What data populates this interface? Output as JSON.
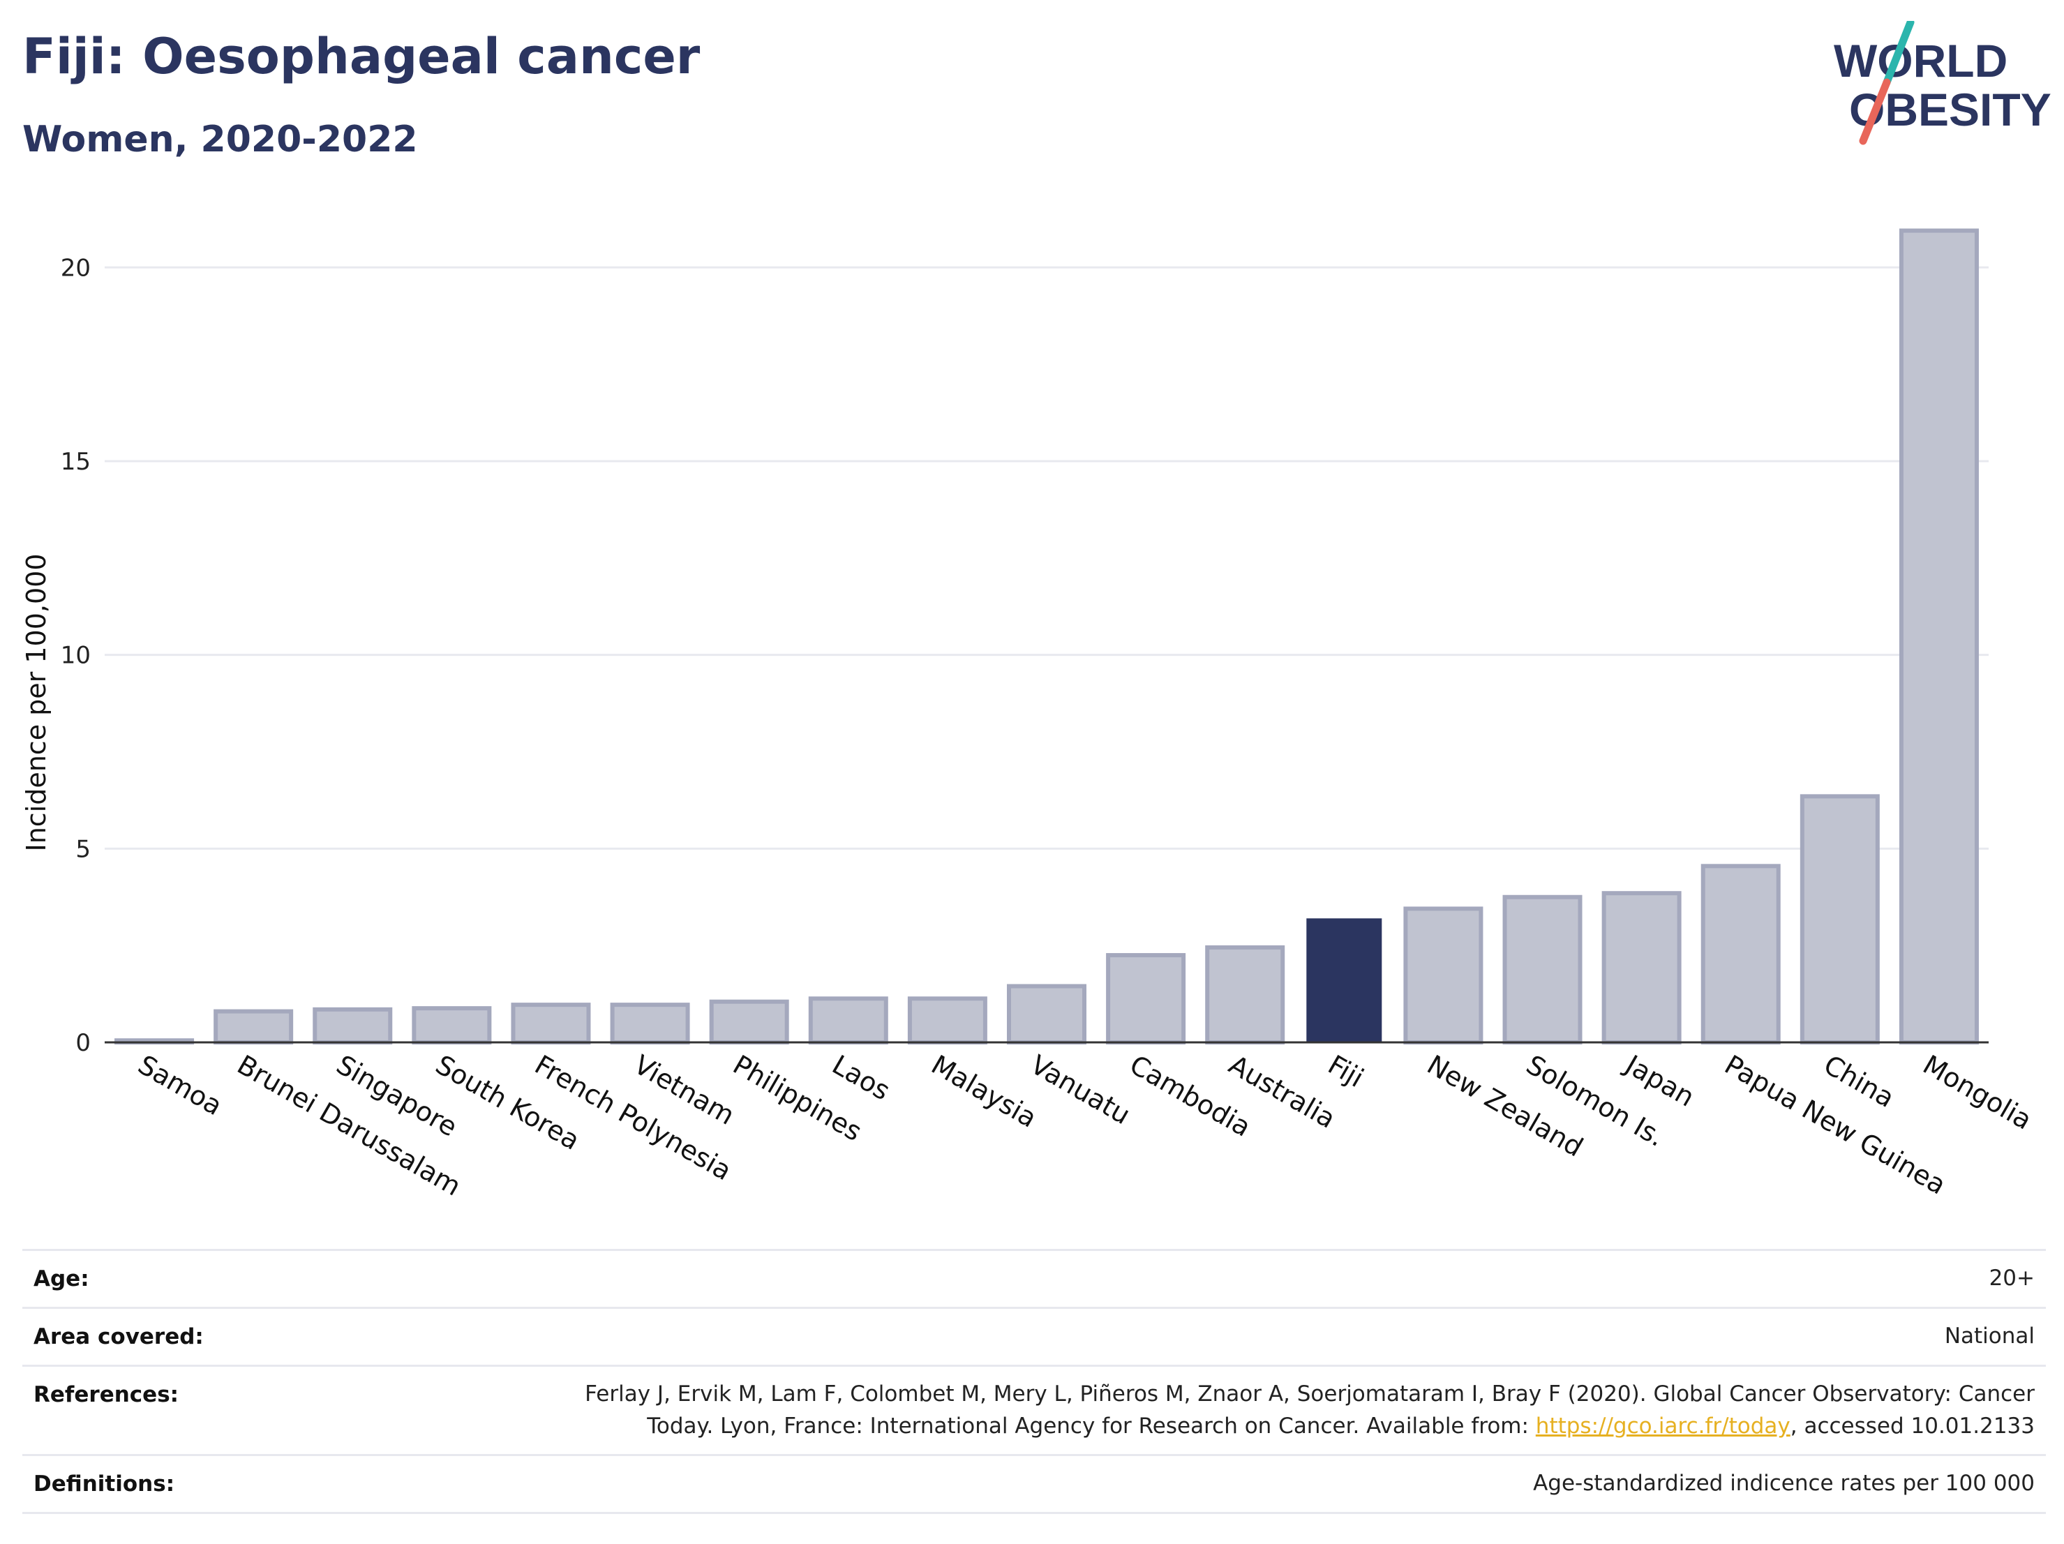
{
  "header": {
    "title": "Fiji: Oesophageal cancer",
    "subtitle": "Women, 2020-2022"
  },
  "logo": {
    "line1": "WORLD",
    "line2": "OBESITY",
    "text_color": "#2b3560",
    "slash_color_top": "#2bb5ad",
    "slash_color_bottom": "#e8665a"
  },
  "colors": {
    "highlight_bar": "#2b3560",
    "other_bar_fill": "#c0c3d0",
    "other_bar_stroke": "#a4a8bd",
    "gridline": "#e8e9ef",
    "axis": "#333333"
  },
  "chart_data": {
    "type": "bar",
    "categories": [
      "Samoa",
      "Brunei Darussalam",
      "Singapore",
      "South Korea",
      "French Polynesia",
      "Vietnam",
      "Philippines",
      "Laos",
      "Malaysia",
      "Vanuatu",
      "Cambodia",
      "Australia",
      "Fiji",
      "New Zealand",
      "Solomon Is.",
      "Japan",
      "Papua New Guinea",
      "China",
      "Mongolia"
    ],
    "values": [
      0.05,
      0.8,
      0.85,
      0.88,
      0.97,
      0.97,
      1.05,
      1.13,
      1.13,
      1.45,
      2.25,
      2.45,
      3.2,
      3.45,
      3.75,
      3.85,
      4.55,
      6.35,
      20.95
    ],
    "highlight": "Fiji",
    "ylabel": "Incidence per 100,000",
    "xlabel": "",
    "ylim": [
      0,
      21.5
    ],
    "yticks": [
      0,
      5,
      10,
      15,
      20
    ],
    "grid": true
  },
  "info": {
    "age_label": "Age:",
    "age_value": "20+",
    "area_label": "Area covered:",
    "area_value": "National",
    "references_label": "References:",
    "references_line1": "Ferlay J, Ervik M, Lam F, Colombet M, Mery L, Piñeros M, Znaor A, Soerjomataram I, Bray F (2020). Global Cancer Observatory: Cancer",
    "references_line2_prefix": "Today. Lyon, France: International Agency for Research on Cancer. Available from: ",
    "references_link": "https://gco.iarc.fr/today",
    "references_line2_suffix": ", accessed 10.01.2133",
    "definitions_label": "Definitions:",
    "definitions_value": "Age-standardized indicence rates per 100 000"
  }
}
